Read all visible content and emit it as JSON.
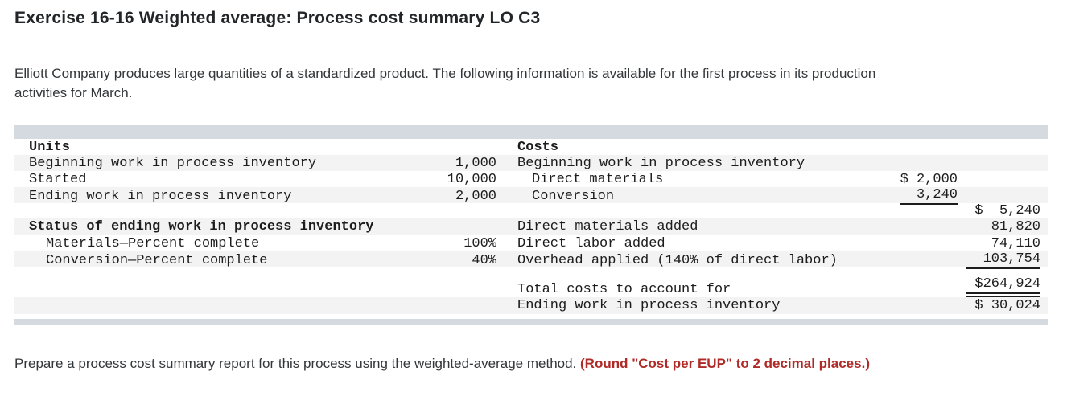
{
  "page": {
    "title": "Exercise 16-16 Weighted average: Process cost summary LO C3",
    "intro": "Elliott Company produces large quantities of a standardized product. The following information is available for the first process in its production activities for March.",
    "instruction_plain": "Prepare a process cost summary report for this process using the weighted-average method. ",
    "instruction_emphasis": "(Round \"Cost per EUP\" to 2 decimal places.)"
  },
  "colors": {
    "band": "#d5dae1",
    "row_stripe": "#f3f3f3",
    "emphasis_red": "#b02b27"
  },
  "table": {
    "units": {
      "header": "Units",
      "rows": [
        {
          "label": "Beginning work in process inventory",
          "value": "1,000"
        },
        {
          "label": "Started",
          "value": "10,000"
        },
        {
          "label": "Ending work in process inventory",
          "value": "2,000"
        }
      ],
      "status_header": "Status of ending work in process inventory",
      "status_rows": [
        {
          "label": "Materials—Percent complete",
          "value": "100%"
        },
        {
          "label": "Conversion—Percent complete",
          "value": "40%"
        }
      ]
    },
    "costs": {
      "header": "Costs",
      "beginning_label": "Beginning work in process inventory",
      "beginning_items": [
        {
          "label": "Direct materials",
          "value": "$ 2,000"
        },
        {
          "label": "Conversion",
          "value": "3,240"
        }
      ],
      "beginning_total": "$  5,240",
      "added_rows": [
        {
          "label": "Direct materials added",
          "value": "81,820"
        },
        {
          "label": "Direct labor added",
          "value": "74,110"
        },
        {
          "label": "Overhead applied (140% of direct labor)",
          "value": "103,754"
        }
      ],
      "total_label": "Total costs to account for",
      "total_value": "$264,924",
      "ending_label": "Ending work in process inventory",
      "ending_value": "$ 30,024"
    }
  }
}
